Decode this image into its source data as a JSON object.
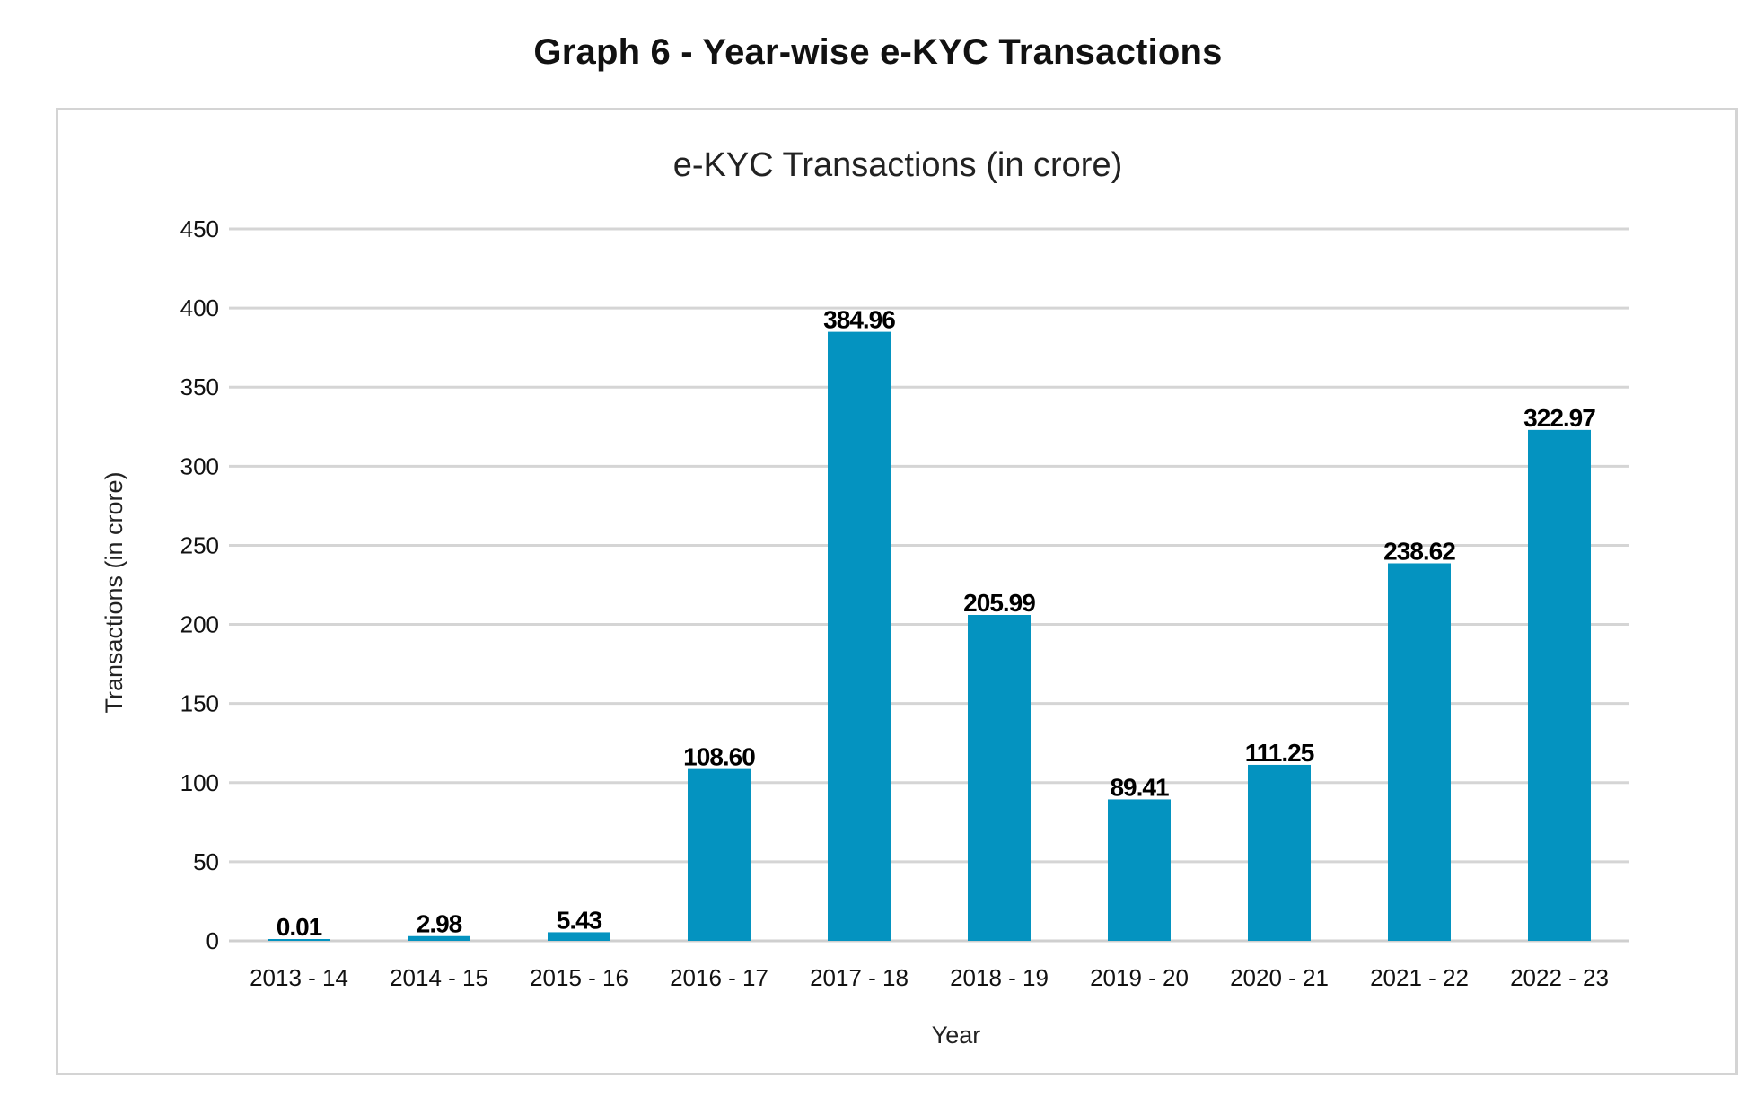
{
  "heading": "Graph 6 - Year-wise e-KYC Transactions",
  "chart_data": {
    "type": "bar",
    "title": "e-KYC Transactions (in crore)",
    "xlabel": "Year",
    "ylabel": "Transactions (in crore)",
    "ylim": [
      0,
      450
    ],
    "yticks": [
      0,
      50,
      100,
      150,
      200,
      250,
      300,
      350,
      400,
      450
    ],
    "grid": true,
    "categories": [
      "2013 - 14",
      "2014 - 15",
      "2015 - 16",
      "2016 - 17",
      "2017 - 18",
      "2018 - 19",
      "2019 - 20",
      "2020 - 21",
      "2021 - 22",
      "2022 - 23"
    ],
    "values": [
      0.01,
      2.98,
      5.43,
      108.6,
      384.96,
      205.99,
      89.41,
      111.25,
      238.62,
      322.97
    ],
    "data_labels": [
      "0.01",
      "2.98",
      "5.43",
      "108.60",
      "384.96",
      "205.99",
      "89.41",
      "111.25",
      "238.62",
      "322.97"
    ],
    "bar_color": "#0493c0"
  }
}
